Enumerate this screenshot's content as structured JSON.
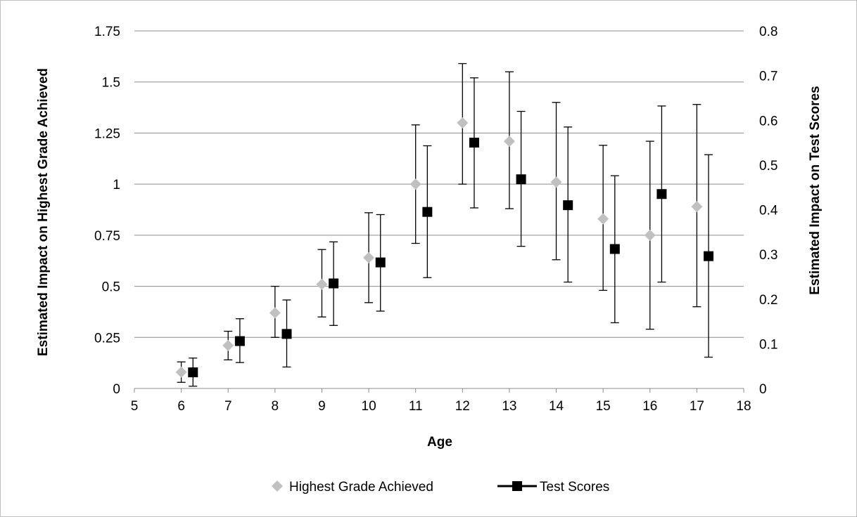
{
  "colors": {
    "grade_marker": "#c0c0c0",
    "scores_marker": "#000000",
    "gridline": "#8c8c8c",
    "frame_border": "#bfbfbf"
  },
  "chart_data": {
    "type": "scatter",
    "xlabel": "Age",
    "ylabel_left": "Estimated Impact on Highest Grade Achieved",
    "ylabel_right": "Estimated Impact on Test Scores",
    "xlim": [
      5,
      18
    ],
    "ylim_left": [
      0,
      1.75
    ],
    "ylim_right": [
      0,
      0.8
    ],
    "x_ticks": [
      "5",
      "6",
      "7",
      "8",
      "9",
      "10",
      "11",
      "12",
      "13",
      "14",
      "15",
      "16",
      "17",
      "18"
    ],
    "y_left_ticks": [
      "0",
      "0.25",
      "0.5",
      "0.75",
      "1",
      "1.25",
      "1.5",
      "1.75"
    ],
    "y_right_ticks": [
      "0",
      "0.1",
      "0.2",
      "0.3",
      "0.4",
      "0.5",
      "0.6",
      "0.7",
      "0.8"
    ],
    "grid": "horizontal",
    "legend_position": "bottom",
    "series": [
      {
        "name": "Highest Grade Achieved",
        "axis": "left",
        "marker": "diamond",
        "x": [
          6,
          7,
          8,
          9,
          10,
          11,
          12,
          13,
          14,
          15,
          16,
          17
        ],
        "y": [
          0.08,
          0.21,
          0.37,
          0.51,
          0.64,
          1.0,
          1.3,
          1.21,
          1.01,
          0.83,
          0.75,
          0.89
        ],
        "err_low": [
          0.03,
          0.14,
          0.25,
          0.35,
          0.42,
          0.71,
          1.0,
          0.88,
          0.63,
          0.48,
          0.29,
          0.4
        ],
        "err_high": [
          0.13,
          0.28,
          0.5,
          0.68,
          0.86,
          1.29,
          1.59,
          1.55,
          1.4,
          1.19,
          1.21,
          1.39
        ]
      },
      {
        "name": "Test Scores",
        "axis": "right",
        "marker": "square",
        "x": [
          6.25,
          7.25,
          8.25,
          9.25,
          10.25,
          11.25,
          12.25,
          13.25,
          14.25,
          15.25,
          16.25,
          17.25
        ],
        "y": [
          0.036,
          0.106,
          0.122,
          0.235,
          0.282,
          0.395,
          0.55,
          0.468,
          0.41,
          0.312,
          0.435,
          0.296
        ],
        "err_low": [
          0.005,
          0.058,
          0.048,
          0.141,
          0.173,
          0.248,
          0.404,
          0.318,
          0.238,
          0.147,
          0.238,
          0.07
        ],
        "err_high": [
          0.068,
          0.156,
          0.198,
          0.328,
          0.389,
          0.543,
          0.695,
          0.62,
          0.585,
          0.476,
          0.632,
          0.523
        ]
      }
    ]
  }
}
